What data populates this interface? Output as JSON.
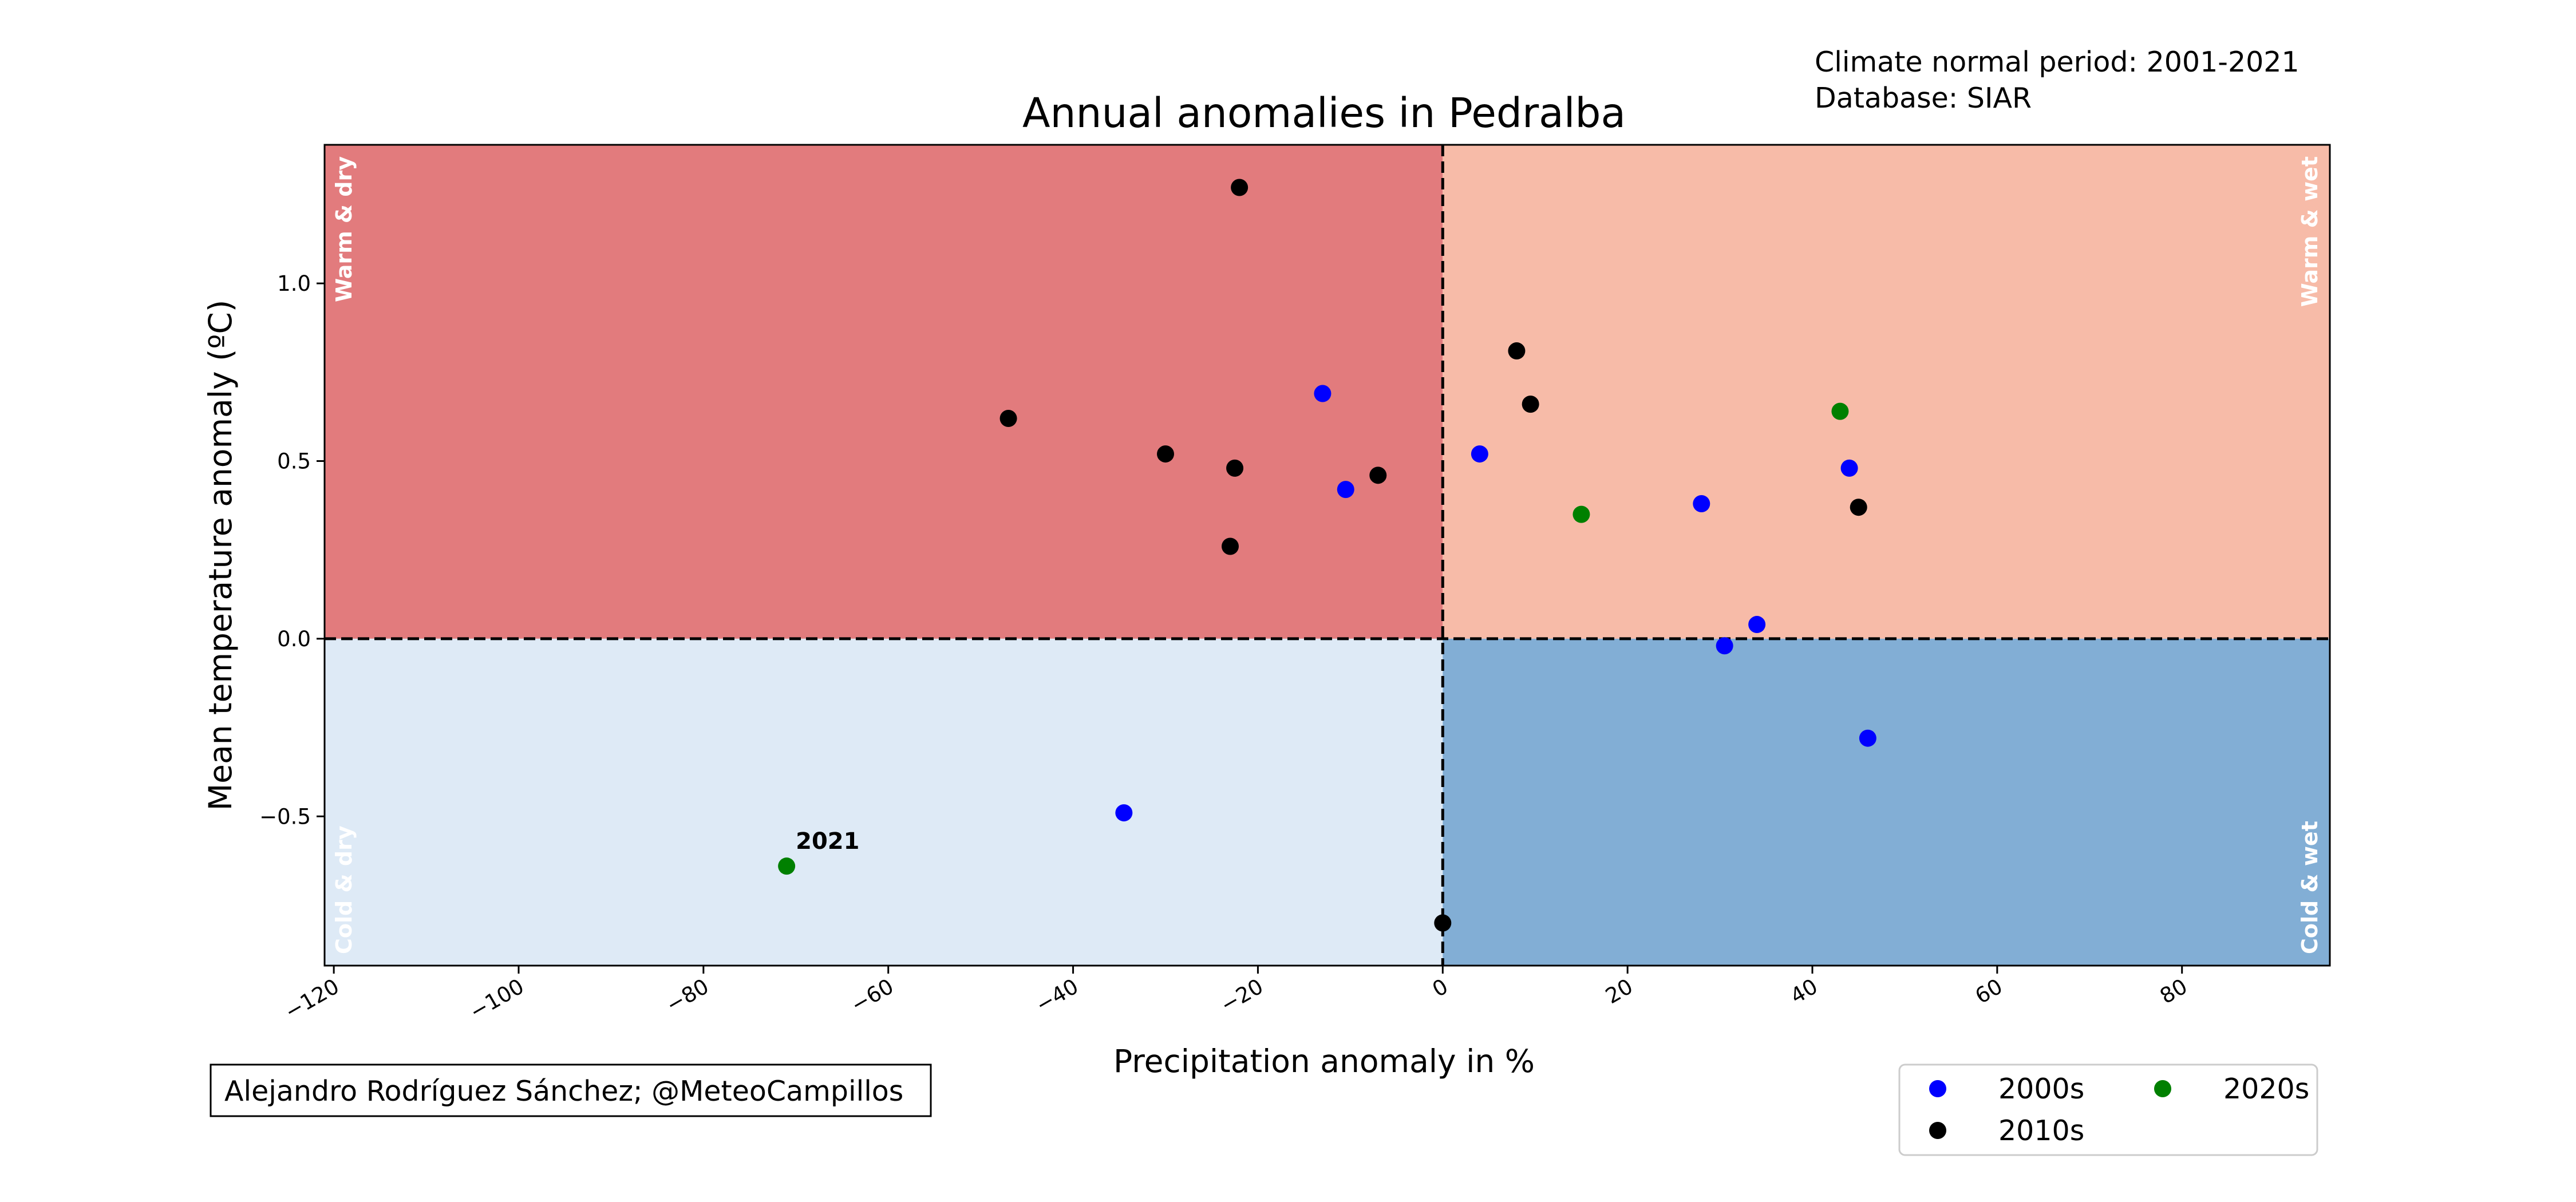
{
  "chart_data": {
    "type": "scatter",
    "title": "Annual anomalies in Pedralba",
    "xlabel": "Precipitation anomaly in %",
    "ylabel": "Mean temperature anomaly (ºC)",
    "xlim": [
      -121,
      96
    ],
    "ylim": [
      -0.92,
      1.39
    ],
    "xticks": [
      -120,
      -100,
      -80,
      -60,
      -40,
      -20,
      0,
      20,
      40,
      60,
      80
    ],
    "xtick_labels": [
      "−120",
      "−100",
      "−80",
      "−60",
      "−40",
      "−20",
      "0",
      "20",
      "40",
      "60",
      "80"
    ],
    "yticks": [
      -0.5,
      0.0,
      0.5,
      1.0
    ],
    "ytick_labels": [
      "−0.5",
      "0.0",
      "0.5",
      "1.0"
    ],
    "grid": false,
    "legend_placement": "bottom-right",
    "info_lines": [
      "Climate normal period: 2001-2021",
      "Database: SIAR"
    ],
    "credit": "Alejandro Rodríguez Sánchez; @MeteoCampillos",
    "quadrants": {
      "warm_dry": {
        "label": "Warm & dry",
        "color": "#e27b7d"
      },
      "warm_wet": {
        "label": "Warm & wet",
        "color": "#f7bba8"
      },
      "cold_dry": {
        "label": "Cold & dry",
        "color": "#deeaf6"
      },
      "cold_wet": {
        "label": "Cold & wet",
        "color": "#82aed5"
      }
    },
    "series": [
      {
        "name": "2000s",
        "color": "#0000ff",
        "points": [
          {
            "x": -13,
            "y": 0.69
          },
          {
            "x": -10.5,
            "y": 0.42
          },
          {
            "x": 4,
            "y": 0.52
          },
          {
            "x": 28,
            "y": 0.38
          },
          {
            "x": 44,
            "y": 0.48
          },
          {
            "x": 34,
            "y": 0.04
          },
          {
            "x": 30.5,
            "y": -0.02
          },
          {
            "x": 46,
            "y": -0.28
          },
          {
            "x": -34.5,
            "y": -0.49
          }
        ]
      },
      {
        "name": "2010s",
        "color": "#000000",
        "points": [
          {
            "x": -22,
            "y": 1.27
          },
          {
            "x": -47,
            "y": 0.62
          },
          {
            "x": -30,
            "y": 0.52
          },
          {
            "x": -22.5,
            "y": 0.48
          },
          {
            "x": -7,
            "y": 0.46
          },
          {
            "x": -23,
            "y": 0.26
          },
          {
            "x": 8,
            "y": 0.81
          },
          {
            "x": 9.5,
            "y": 0.66
          },
          {
            "x": 45,
            "y": 0.37
          },
          {
            "x": 0,
            "y": -0.8
          }
        ]
      },
      {
        "name": "2020s",
        "color": "#008000",
        "points": [
          {
            "x": 43,
            "y": 0.64
          },
          {
            "x": 15,
            "y": 0.35
          },
          {
            "x": -71,
            "y": -0.64
          }
        ]
      }
    ],
    "annotations": [
      {
        "text": "2021",
        "x": -71,
        "y": -0.64
      }
    ]
  }
}
